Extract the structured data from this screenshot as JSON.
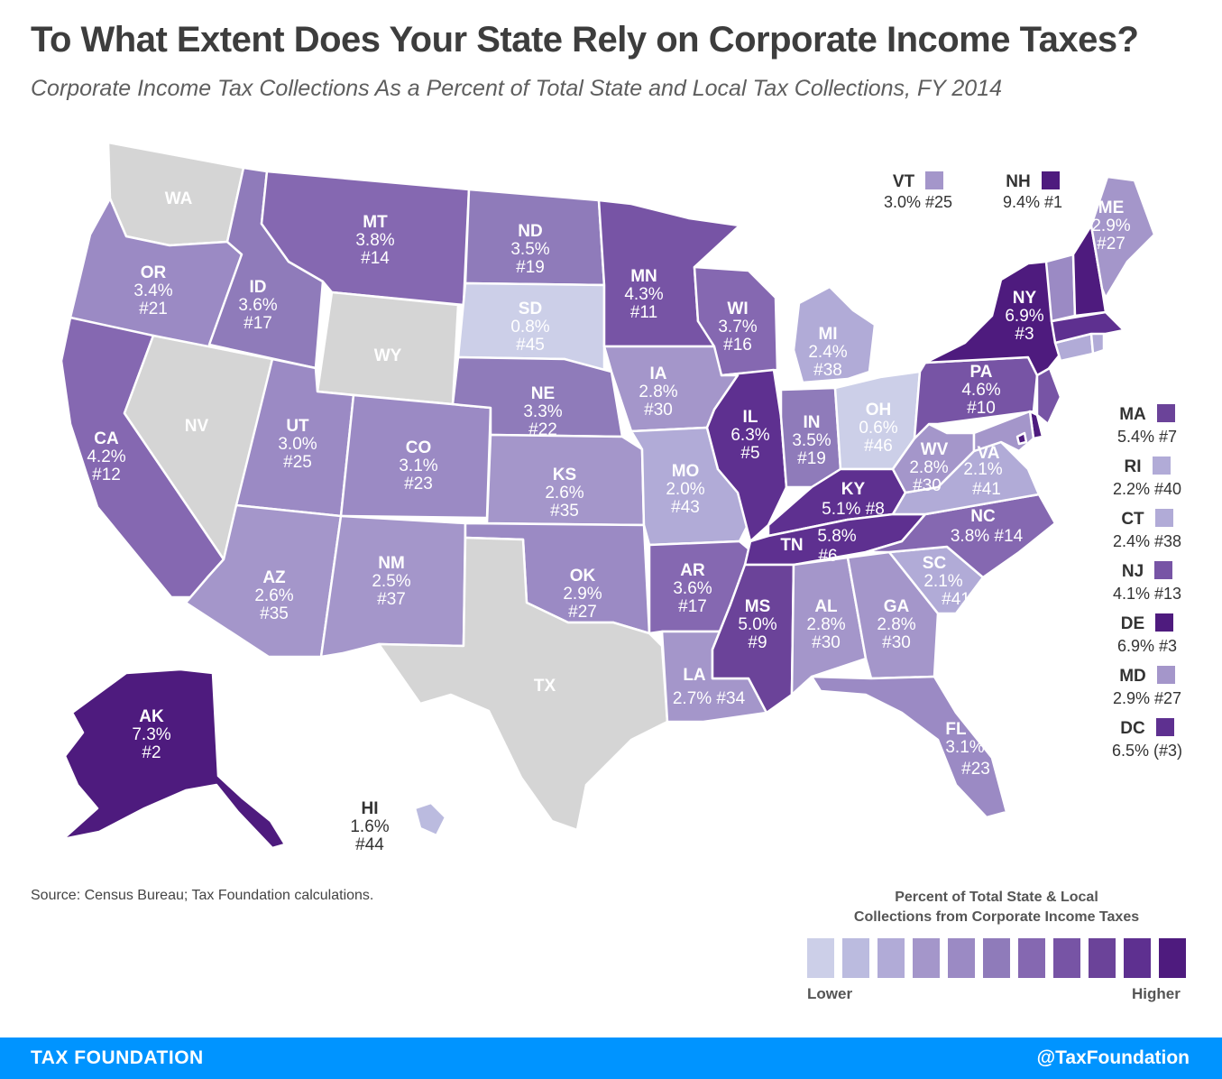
{
  "title": "To What Extent Does Your State Rely on Corporate Income Taxes?",
  "subtitle": "Corporate Income Tax Collections As a Percent of Total State and Local Tax Collections, FY 2014",
  "colors": {
    "no_tax": "#d5d5d5",
    "scale": [
      "#cccfe8",
      "#bbbbdf",
      "#b1abd7",
      "#a496ca",
      "#9b8ac4",
      "#8f7bba",
      "#8568b1",
      "#7754a5",
      "#6b4399",
      "#5e3090",
      "#4e1b7e"
    ],
    "footer": "#0094ff"
  },
  "states": {
    "WA": {
      "value": "",
      "rank": "",
      "tier": -1
    },
    "OR": {
      "value": "3.4%",
      "rank": "#21",
      "tier": 4
    },
    "CA": {
      "value": "4.2%",
      "rank": "#12",
      "tier": 6
    },
    "NV": {
      "value": "",
      "rank": "",
      "tier": -1
    },
    "ID": {
      "value": "3.6%",
      "rank": "#17",
      "tier": 5
    },
    "MT": {
      "value": "3.8%",
      "rank": "#14",
      "tier": 6
    },
    "WY": {
      "value": "",
      "rank": "",
      "tier": -1
    },
    "UT": {
      "value": "3.0%",
      "rank": "#25",
      "tier": 4
    },
    "AZ": {
      "value": "2.6%",
      "rank": "#35",
      "tier": 3
    },
    "CO": {
      "value": "3.1%",
      "rank": "#23",
      "tier": 4
    },
    "NM": {
      "value": "2.5%",
      "rank": "#37",
      "tier": 3
    },
    "ND": {
      "value": "3.5%",
      "rank": "#19",
      "tier": 5
    },
    "SD": {
      "value": "0.8%",
      "rank": "#45",
      "tier": 0
    },
    "NE": {
      "value": "3.3%",
      "rank": "#22",
      "tier": 5
    },
    "KS": {
      "value": "2.6%",
      "rank": "#35",
      "tier": 3
    },
    "OK": {
      "value": "2.9%",
      "rank": "#27",
      "tier": 4
    },
    "TX": {
      "value": "",
      "rank": "",
      "tier": -1
    },
    "MN": {
      "value": "4.3%",
      "rank": "#11",
      "tier": 7
    },
    "IA": {
      "value": "2.8%",
      "rank": "#30",
      "tier": 3
    },
    "MO": {
      "value": "2.0%",
      "rank": "#43",
      "tier": 2
    },
    "AR": {
      "value": "3.6%",
      "rank": "#17",
      "tier": 6
    },
    "LA": {
      "value": "2.7%",
      "rank": "#34",
      "tier": 3
    },
    "WI": {
      "value": "3.7%",
      "rank": "#16",
      "tier": 6
    },
    "IL": {
      "value": "6.3%",
      "rank": "#5",
      "tier": 9
    },
    "MI": {
      "value": "2.4%",
      "rank": "#38",
      "tier": 2
    },
    "IN": {
      "value": "3.5%",
      "rank": "#19",
      "tier": 5
    },
    "OH": {
      "value": "0.6%",
      "rank": "#46",
      "tier": 0
    },
    "KY": {
      "value": "5.1%",
      "rank": "#8",
      "tier": 9
    },
    "TN": {
      "value": "5.8%",
      "rank": "#6",
      "tier": 9
    },
    "MS": {
      "value": "5.0%",
      "rank": "#9",
      "tier": 8
    },
    "AL": {
      "value": "2.8%",
      "rank": "#30",
      "tier": 3
    },
    "GA": {
      "value": "2.8%",
      "rank": "#30",
      "tier": 3
    },
    "FL": {
      "value": "3.1%",
      "rank": "#23",
      "tier": 4
    },
    "SC": {
      "value": "2.1%",
      "rank": "#41",
      "tier": 2
    },
    "NC": {
      "value": "3.8%",
      "rank": "#14",
      "tier": 6
    },
    "VA": {
      "value": "2.1%",
      "rank": "#41",
      "tier": 2
    },
    "WV": {
      "value": "2.8%",
      "rank": "#30",
      "tier": 3
    },
    "PA": {
      "value": "4.6%",
      "rank": "#10",
      "tier": 7
    },
    "NY": {
      "value": "6.9%",
      "rank": "#3",
      "tier": 10
    },
    "VT": {
      "value": "3.0%",
      "rank": "#25",
      "tier": 4
    },
    "NH": {
      "value": "9.4%",
      "rank": "#1",
      "tier": 10
    },
    "ME": {
      "value": "2.9%",
      "rank": "#27",
      "tier": 3
    },
    "MA": {
      "value": "5.4%",
      "rank": "#7",
      "tier": 9
    },
    "RI": {
      "value": "2.2%",
      "rank": "#40",
      "tier": 2
    },
    "CT": {
      "value": "2.4%",
      "rank": "#38",
      "tier": 2
    },
    "NJ": {
      "value": "4.1%",
      "rank": "#13",
      "tier": 7
    },
    "DE": {
      "value": "6.9%",
      "rank": "#3",
      "tier": 10
    },
    "MD": {
      "value": "2.9%",
      "rank": "#27",
      "tier": 3
    },
    "DC": {
      "value": "6.5% (#3)",
      "rank": "",
      "tier": 10
    },
    "AK": {
      "value": "7.3%",
      "rank": "#2",
      "tier": 10
    },
    "HI": {
      "value": "1.6%",
      "rank": "#44",
      "tier": 1
    }
  },
  "labels": {
    "wa": "WA",
    "nv": "NV",
    "wy": "WY",
    "tx": "TX",
    "or_ab": "OR",
    "or_v": "3.4%",
    "or_r": "#21",
    "ca_ab": "CA",
    "ca_v": "4.2%",
    "ca_r": "#12",
    "id_ab": "ID",
    "id_v": "3.6%",
    "id_r": "#17",
    "mt_ab": "MT",
    "mt_v": "3.8%",
    "mt_r": "#14",
    "ut_ab": "UT",
    "ut_v": "3.0%",
    "ut_r": "#25",
    "az_ab": "AZ",
    "az_v": "2.6%",
    "az_r": "#35",
    "co_ab": "CO",
    "co_v": "3.1%",
    "co_r": "#23",
    "nm_ab": "NM",
    "nm_v": "2.5%",
    "nm_r": "#37",
    "nd_ab": "ND",
    "nd_v": "3.5%",
    "nd_r": "#19",
    "sd_ab": "SD",
    "sd_v": "0.8%",
    "sd_r": "#45",
    "ne_ab": "NE",
    "ne_v": "3.3%",
    "ne_r": "#22",
    "ks_ab": "KS",
    "ks_v": "2.6%",
    "ks_r": "#35",
    "ok_ab": "OK",
    "ok_v": "2.9%",
    "ok_r": "#27",
    "mn_ab": "MN",
    "mn_v": "4.3%",
    "mn_r": "#11",
    "ia_ab": "IA",
    "ia_v": "2.8%",
    "ia_r": "#30",
    "mo_ab": "MO",
    "mo_v": "2.0%",
    "mo_r": "#43",
    "ar_ab": "AR",
    "ar_v": "3.6%",
    "ar_r": "#17",
    "la_ab": "LA",
    "la_vr": "2.7% #34",
    "wi_ab": "WI",
    "wi_v": "3.7%",
    "wi_r": "#16",
    "il_ab": "IL",
    "il_v": "6.3%",
    "il_r": "#5",
    "mi_ab": "MI",
    "mi_v": "2.4%",
    "mi_r": "#38",
    "in_ab": "IN",
    "in_v": "3.5%",
    "in_r": "#19",
    "oh_ab": "OH",
    "oh_v": "0.6%",
    "oh_r": "#46",
    "ky_ab": "KY",
    "ky_vr": "5.1% #8",
    "tn_ab": "TN",
    "tn_v": "5.8%",
    "tn_r": "#6",
    "ms_ab": "MS",
    "ms_v": "5.0%",
    "ms_r": "#9",
    "al_ab": "AL",
    "al_v": "2.8%",
    "al_r": "#30",
    "ga_ab": "GA",
    "ga_v": "2.8%",
    "ga_r": "#30",
    "fl_ab": "FL",
    "fl_v": "3.1%",
    "fl_r": "#23",
    "sc_ab": "SC",
    "sc_v": "2.1%",
    "sc_r": "#41",
    "nc_ab": "NC",
    "nc_vr": "3.8% #14",
    "va_ab": "VA",
    "va_v": "2.1%",
    "va_r": "#41",
    "wv_ab": "WV",
    "wv_v": "2.8%",
    "wv_r": "#30",
    "pa_ab": "PA",
    "pa_v": "4.6%",
    "pa_r": "#10",
    "ny_ab": "NY",
    "ny_v": "6.9%",
    "ny_r": "#3",
    "me_ab": "ME",
    "me_v": "2.9%",
    "me_r": "#27",
    "ak_ab": "AK",
    "ak_v": "7.3%",
    "ak_r": "#2",
    "hi_ab": "HI",
    "hi_v": "1.6%",
    "hi_r": "#44"
  },
  "callouts_top": [
    {
      "abbr": "VT",
      "text": "3.0% #25",
      "color": "#a496ca"
    },
    {
      "abbr": "NH",
      "text": "9.4% #1",
      "color": "#4e1b7e"
    }
  ],
  "callouts_side": [
    {
      "abbr": "MA",
      "text": "5.4% #7",
      "color": "#6b4399"
    },
    {
      "abbr": "RI",
      "text": "2.2% #40",
      "color": "#b1abd7"
    },
    {
      "abbr": "CT",
      "text": "2.4% #38",
      "color": "#b1abd7"
    },
    {
      "abbr": "NJ",
      "text": "4.1% #13",
      "color": "#7754a5"
    },
    {
      "abbr": "DE",
      "text": "6.9% #3",
      "color": "#4e1b7e"
    },
    {
      "abbr": "MD",
      "text": "2.9% #27",
      "color": "#a496ca"
    },
    {
      "abbr": "DC",
      "text": "6.5% (#3)",
      "color": "#5e3090"
    }
  ],
  "source": "Source: Census Bureau; Tax Foundation calculations.",
  "legend": {
    "title_line1": "Percent of Total State & Local",
    "title_line2": "Collections from Corporate Income Taxes",
    "low": "Lower",
    "high": "Higher"
  },
  "footer": {
    "left": "TAX FOUNDATION",
    "right": "@TaxFoundation"
  }
}
